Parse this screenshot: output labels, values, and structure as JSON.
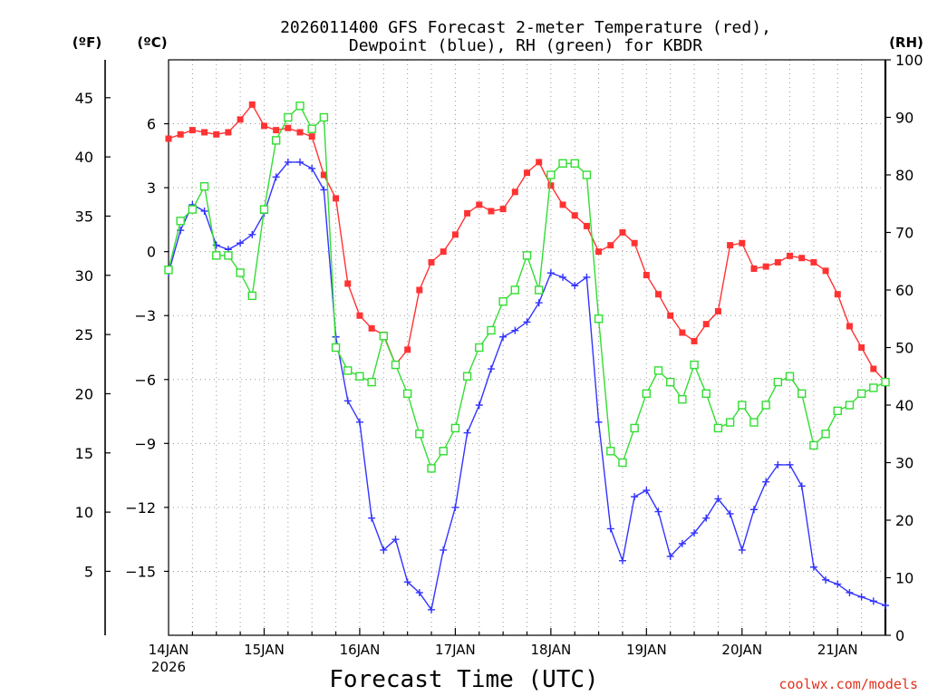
{
  "chart_data": {
    "type": "line",
    "title_line1": "2026011400 GFS Forecast 2-meter Temperature (red),",
    "title_line2": "Dewpoint (blue), RH (green) for KBDR",
    "xlabel": "Forecast Time (UTC)",
    "credit": "coolwx.com/models",
    "units": {
      "fahrenheit": "(ºF)",
      "celsius": "(ºC)",
      "rh": "(RH)"
    },
    "x_unit": "forecast hour from 2026-01-14 00Z",
    "xlim": [
      0,
      180
    ],
    "x_ticks": [
      {
        "h": 0,
        "label": "14JAN",
        "sub": "2026"
      },
      {
        "h": 24,
        "label": "15JAN"
      },
      {
        "h": 48,
        "label": "16JAN"
      },
      {
        "h": 72,
        "label": "17JAN"
      },
      {
        "h": 96,
        "label": "18JAN"
      },
      {
        "h": 120,
        "label": "19JAN"
      },
      {
        "h": 144,
        "label": "20JAN"
      },
      {
        "h": 168,
        "label": "21JAN"
      }
    ],
    "y_celsius": {
      "range": [
        -18,
        9
      ],
      "ticks": [
        6,
        3,
        0,
        -3,
        -6,
        -9,
        -12,
        -15
      ],
      "labels": [
        "6",
        "3",
        "0",
        "−3",
        "−6",
        "−9",
        "−12",
        "−15"
      ]
    },
    "y_fahrenheit": {
      "ticks": [
        45,
        40,
        35,
        30,
        25,
        20,
        15,
        10,
        5
      ],
      "labels": [
        "45",
        "40",
        "35",
        "30",
        "25",
        "20",
        "15",
        "10",
        "5"
      ]
    },
    "y_rh": {
      "range": [
        0,
        100
      ],
      "ticks": [
        100,
        90,
        80,
        70,
        60,
        50,
        40,
        30,
        20,
        10,
        0
      ],
      "labels": [
        "100",
        "90",
        "80",
        "70",
        "60",
        "50",
        "40",
        "30",
        "20",
        "10",
        "0"
      ]
    },
    "series": [
      {
        "name": "Temperature",
        "unit": "C",
        "color": "#ff3333",
        "marker": "filled-square",
        "x": [
          0,
          3,
          6,
          9,
          12,
          15,
          18,
          21,
          24,
          27,
          30,
          33,
          36,
          39,
          42,
          45,
          48,
          51,
          54,
          57,
          60,
          63,
          66,
          69,
          72,
          75,
          78,
          81,
          84,
          87,
          90,
          93,
          96,
          99,
          102,
          105,
          108,
          111,
          114,
          117,
          120,
          123,
          126,
          129,
          132,
          135,
          138,
          141,
          144,
          147,
          150,
          153,
          156,
          159,
          162,
          165,
          168,
          171,
          174,
          177,
          180
        ],
        "values": [
          5.3,
          5.5,
          5.7,
          5.6,
          5.5,
          5.6,
          6.2,
          6.9,
          5.9,
          5.7,
          5.8,
          5.6,
          5.4,
          3.6,
          2.5,
          -1.5,
          -3.0,
          -3.6,
          -3.9,
          -5.3,
          -4.6,
          -1.8,
          -0.5,
          0.0,
          0.8,
          1.8,
          2.2,
          1.9,
          2.0,
          2.8,
          3.7,
          4.2,
          3.1,
          2.2,
          1.7,
          1.2,
          0.0,
          0.3,
          0.9,
          0.4,
          -1.1,
          -2.0,
          -3.0,
          -3.8,
          -4.2,
          -3.4,
          -2.8,
          0.3,
          0.4,
          -0.8,
          -0.7,
          -0.5,
          -0.2,
          -0.3,
          -0.5,
          -0.9,
          -2.0,
          -3.5,
          -4.5,
          -5.5,
          -6.1
        ]
      },
      {
        "name": "Dewpoint",
        "unit": "C",
        "color": "#3333ff",
        "marker": "plus",
        "x": [
          0,
          3,
          6,
          9,
          12,
          15,
          18,
          21,
          24,
          27,
          30,
          33,
          36,
          39,
          42,
          45,
          48,
          51,
          54,
          57,
          60,
          63,
          66,
          69,
          72,
          75,
          78,
          81,
          84,
          87,
          90,
          93,
          96,
          99,
          102,
          105,
          108,
          111,
          114,
          117,
          120,
          123,
          126,
          129,
          132,
          135,
          138,
          141,
          144,
          147,
          150,
          153,
          156,
          159,
          162,
          165,
          168,
          171,
          174,
          177,
          180
        ],
        "values": [
          -1.0,
          1.0,
          2.2,
          1.9,
          0.3,
          0.1,
          0.4,
          0.8,
          1.8,
          3.5,
          4.2,
          4.2,
          3.9,
          2.9,
          -4.0,
          -7.0,
          -8.0,
          -12.5,
          -14.0,
          -13.5,
          -15.5,
          -16.0,
          -16.8,
          -14.0,
          -12.0,
          -8.5,
          -7.2,
          -5.5,
          -4.0,
          -3.7,
          -3.3,
          -2.4,
          -1.0,
          -1.2,
          -1.6,
          -1.2,
          -8.0,
          -13.0,
          -14.5,
          -11.5,
          -11.2,
          -12.2,
          -14.3,
          -13.7,
          -13.2,
          -12.5,
          -11.6,
          -12.3,
          -14.0,
          -12.1,
          -10.8,
          -10.0,
          -10.0,
          -11.0,
          -14.8,
          -15.4,
          -15.6,
          -16.0,
          -16.2,
          -16.4,
          -16.6
        ]
      },
      {
        "name": "Relative Humidity",
        "unit": "%",
        "color": "#33dd33",
        "marker": "open-square",
        "x": [
          0,
          3,
          6,
          9,
          12,
          15,
          18,
          21,
          24,
          27,
          30,
          33,
          36,
          39,
          42,
          45,
          48,
          51,
          54,
          57,
          60,
          63,
          66,
          69,
          72,
          75,
          78,
          81,
          84,
          87,
          90,
          93,
          96,
          99,
          102,
          105,
          108,
          111,
          114,
          117,
          120,
          123,
          126,
          129,
          132,
          135,
          138,
          141,
          144,
          147,
          150,
          153,
          156,
          159,
          162,
          165,
          168,
          171,
          174,
          177,
          180
        ],
        "values": [
          63.5,
          72,
          74,
          78,
          66,
          66,
          63,
          59,
          74,
          86,
          90,
          92,
          88,
          90,
          50,
          46,
          45,
          44,
          52,
          47,
          42,
          35,
          29,
          32,
          36,
          45,
          50,
          53,
          58,
          60,
          66,
          60,
          80,
          82,
          82,
          80,
          55,
          32,
          30,
          36,
          42,
          46,
          44,
          41,
          47,
          42,
          36,
          37,
          40,
          37,
          40,
          44,
          45,
          42,
          33,
          35,
          39,
          40,
          42,
          43,
          44
        ]
      }
    ]
  }
}
